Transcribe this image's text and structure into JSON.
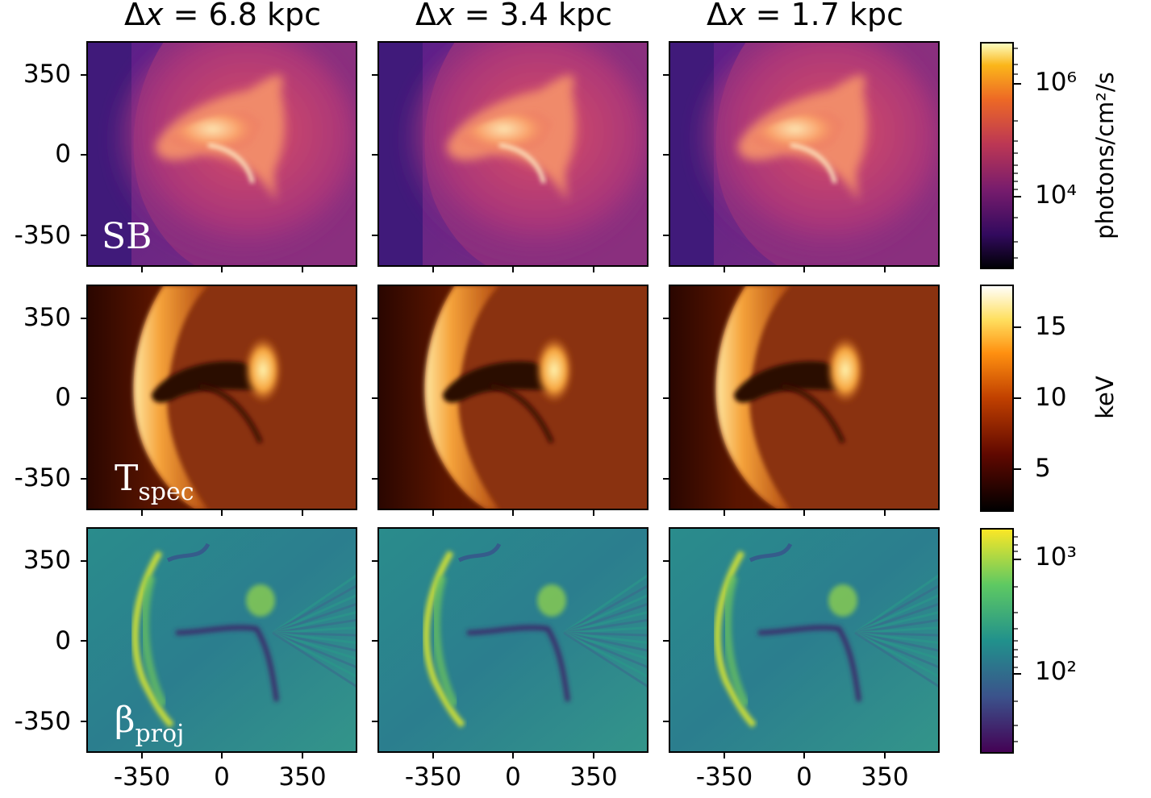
{
  "columns": [
    {
      "prefix": "Δ",
      "var": "x",
      "text": " = 6.8 kpc"
    },
    {
      "prefix": "Δ",
      "var": "x",
      "text": " = 3.4 kpc"
    },
    {
      "prefix": "Δ",
      "var": "x",
      "text": " = 1.7 kpc"
    }
  ],
  "rows": [
    {
      "label_main": "SB",
      "label_sub": "",
      "colormap": "inferno",
      "cbar_label": "photons/cm²/s",
      "cbar_ticks": [
        "10⁶",
        "10⁴"
      ]
    },
    {
      "label_main": "T",
      "label_sub": "spec",
      "colormap": "afmhot",
      "cbar_label": "keV",
      "cbar_ticks": [
        "15",
        "10",
        "5"
      ]
    },
    {
      "label_main": "β",
      "label_sub": "proj",
      "colormap": "viridis",
      "cbar_label": "",
      "cbar_ticks": [
        "10³",
        "10²"
      ]
    }
  ],
  "y_ticks": [
    "350",
    "0",
    "-350"
  ],
  "x_ticks": [
    "-350",
    "0",
    "350"
  ],
  "colors": {
    "inferno": [
      "#000004",
      "#320a5e",
      "#781c6d",
      "#bc3754",
      "#ed6925",
      "#fbb61a",
      "#fcffa4"
    ],
    "afmhot": [
      "#000000",
      "#500000",
      "#a02000",
      "#f07000",
      "#ffb040",
      "#ffff90",
      "#ffffff"
    ],
    "viridis": [
      "#440154",
      "#3b528b",
      "#21918c",
      "#5ec962",
      "#fde725"
    ]
  }
}
